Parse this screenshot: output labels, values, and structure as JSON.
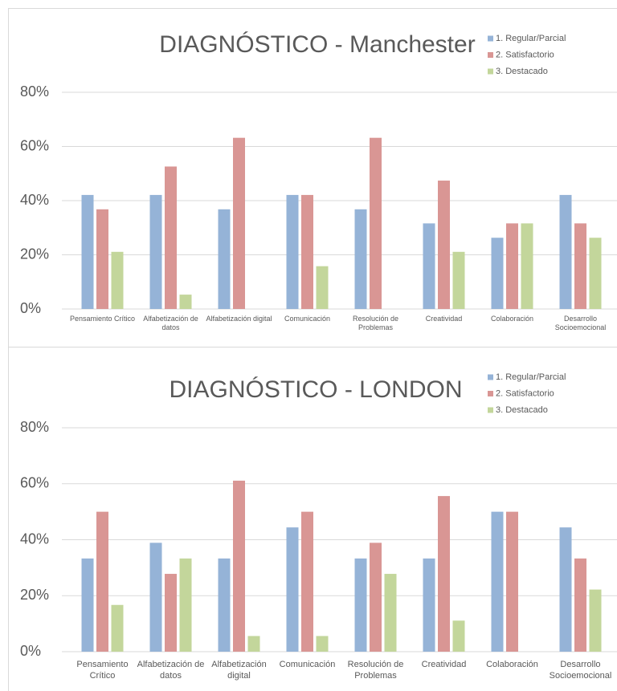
{
  "chart_data": [
    {
      "type": "bar",
      "title": "DIAGNÓSTICO - Manchester",
      "categories": [
        "Pensamiento Crítico",
        "Alfabetización de datos",
        "Alfabetización digital",
        "Comunicación",
        "Resolución de Problemas",
        "Creatividad",
        "Colaboración",
        "Desarrollo Socioemocional"
      ],
      "series": [
        {
          "name": "1. Regular/Parcial",
          "color": "#95b3d7",
          "values": [
            42.1,
            42.1,
            36.8,
            42.1,
            36.8,
            31.6,
            26.3,
            42.1
          ]
        },
        {
          "name": "2. Satisfactorio",
          "color": "#d99694",
          "values": [
            36.8,
            52.6,
            63.2,
            42.1,
            63.2,
            47.4,
            31.6,
            31.6
          ]
        },
        {
          "name": "3. Destacado",
          "color": "#c3d69b",
          "values": [
            21.1,
            5.3,
            0,
            15.8,
            0,
            21.1,
            31.6,
            26.3
          ]
        }
      ],
      "ylim": [
        0,
        80
      ],
      "yticks": [
        {
          "value": 0,
          "label": "0%"
        },
        {
          "value": 20,
          "label": "20%"
        },
        {
          "value": 40,
          "label": "40%"
        },
        {
          "value": 60,
          "label": "60%"
        },
        {
          "value": 80,
          "label": "80%"
        }
      ],
      "grid": true,
      "legend": "top-right"
    },
    {
      "type": "bar",
      "title": "DIAGNÓSTICO - LONDON",
      "categories": [
        "Pensamiento Crítico",
        "Alfabetización de datos",
        "Alfabetización digital",
        "Comunicación",
        "Resolución de Problemas",
        "Creatividad",
        "Colaboración",
        "Desarrollo Socioemocional"
      ],
      "series": [
        {
          "name": "1. Regular/Parcial",
          "color": "#95b3d7",
          "values": [
            33.3,
            38.9,
            33.3,
            44.4,
            33.3,
            33.3,
            50,
            44.4
          ]
        },
        {
          "name": "2. Satisfactorio",
          "color": "#d99694",
          "values": [
            50,
            27.8,
            61.1,
            50,
            38.9,
            55.6,
            50,
            33.3
          ]
        },
        {
          "name": "3. Destacado",
          "color": "#c3d69b",
          "values": [
            16.7,
            33.3,
            5.6,
            5.6,
            27.8,
            11.1,
            0,
            22.2
          ]
        }
      ],
      "ylim": [
        0,
        80
      ],
      "yticks": [
        {
          "value": 0,
          "label": "0%"
        },
        {
          "value": 20,
          "label": "20%"
        },
        {
          "value": 40,
          "label": "40%"
        },
        {
          "value": 60,
          "label": "60%"
        },
        {
          "value": 80,
          "label": "80%"
        }
      ],
      "grid": true,
      "legend": "top-right"
    }
  ]
}
